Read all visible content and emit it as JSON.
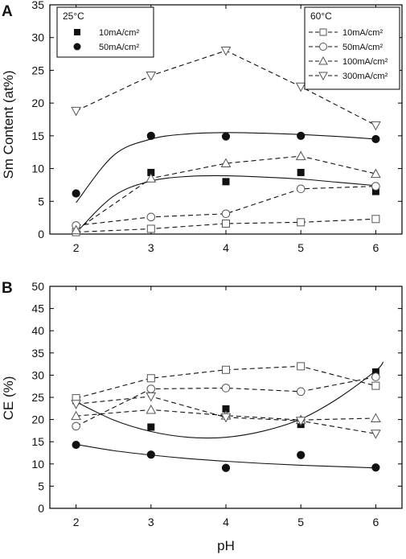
{
  "chart_data": [
    {
      "panel_letter": "A",
      "type": "scatter",
      "ylabel": "Sm Content (at%)",
      "ylim": [
        0,
        35
      ],
      "yticks": [
        "0",
        "5",
        "10",
        "15",
        "20",
        "25",
        "30",
        "35"
      ],
      "xlim": [
        1.65,
        6.35
      ],
      "xticks": [
        "2",
        "3",
        "4",
        "5",
        "6"
      ],
      "legends": [
        {
          "title": "25°C",
          "entries": [
            {
              "series": 0,
              "label": "10mA/cm²"
            },
            {
              "series": 1,
              "label": "50mA/cm²"
            }
          ]
        },
        {
          "title": "60°C",
          "entries": [
            {
              "series": 2,
              "label": "10mA/cm²"
            },
            {
              "series": 3,
              "label": "50mA/cm²"
            },
            {
              "series": 4,
              "label": "100mA/cm²"
            },
            {
              "series": 5,
              "label": "300mA/cm²"
            }
          ]
        }
      ],
      "series": [
        {
          "marker": "square-filled",
          "line": "solid-fit",
          "x": [
            3,
            4,
            5,
            6
          ],
          "y": [
            9.4,
            8.0,
            9.4,
            6.5
          ],
          "fit_x": [
            2,
            2.5,
            3,
            3.5,
            4,
            4.5,
            5,
            5.5,
            6
          ],
          "fit_y": [
            0.2,
            5.8,
            8.1,
            8.8,
            8.9,
            8.7,
            8.4,
            7.9,
            7.4
          ]
        },
        {
          "marker": "circle-filled",
          "line": "solid-fit",
          "x": [
            2,
            3,
            4,
            5,
            6
          ],
          "y": [
            6.2,
            15.0,
            14.9,
            15.0,
            14.5
          ],
          "fit_x": [
            2,
            2.5,
            3,
            3.5,
            4,
            4.5,
            5,
            5.5,
            6
          ],
          "fit_y": [
            4.8,
            12.0,
            14.5,
            15.3,
            15.5,
            15.4,
            15.2,
            14.9,
            14.5
          ]
        },
        {
          "marker": "square-open",
          "line": "dashed",
          "x": [
            2,
            3,
            4,
            5,
            6
          ],
          "y": [
            0.3,
            0.8,
            1.6,
            1.8,
            2.3
          ]
        },
        {
          "marker": "circle-open",
          "line": "dashed",
          "x": [
            2,
            3,
            4,
            5,
            6
          ],
          "y": [
            1.3,
            2.6,
            3.1,
            6.9,
            7.3
          ]
        },
        {
          "marker": "triangle-up-open",
          "line": "dashed",
          "x": [
            2,
            3,
            4,
            5,
            6
          ],
          "y": [
            0.6,
            8.5,
            10.8,
            11.9,
            9.2
          ]
        },
        {
          "marker": "triangle-down-open",
          "line": "dashed",
          "x": [
            2,
            3,
            4,
            5,
            6
          ],
          "y": [
            18.8,
            24.2,
            28.0,
            22.5,
            16.6
          ]
        }
      ]
    },
    {
      "panel_letter": "B",
      "type": "scatter",
      "xlabel": "pH",
      "ylabel": "CE (%)",
      "ylim": [
        0,
        50
      ],
      "yticks": [
        "0",
        "5",
        "10",
        "15",
        "20",
        "25",
        "30",
        "35",
        "40",
        "45",
        "50"
      ],
      "xlim": [
        1.65,
        6.35
      ],
      "xticks": [
        "2",
        "3",
        "4",
        "5",
        "6"
      ],
      "series": [
        {
          "marker": "square-filled",
          "line": "solid-fit",
          "x": [
            2,
            3,
            4,
            5,
            6
          ],
          "y": [
            24.3,
            18.3,
            22.4,
            18.9,
            30.7
          ],
          "fit_x": [
            2,
            2.5,
            3,
            3.5,
            4,
            4.5,
            5,
            5.5,
            6,
            6.1
          ],
          "fit_y": [
            24.0,
            19.9,
            17.3,
            16.0,
            16.0,
            17.4,
            20.1,
            24.8,
            31.0,
            33.0
          ]
        },
        {
          "marker": "circle-filled",
          "line": "solid-fit",
          "x": [
            2,
            3,
            4,
            5,
            6
          ],
          "y": [
            14.3,
            12.1,
            9.1,
            12.0,
            9.2
          ],
          "fit_x": [
            2,
            2.5,
            3,
            3.5,
            4,
            4.5,
            5,
            5.5,
            6
          ],
          "fit_y": [
            14.4,
            13.0,
            12.0,
            11.2,
            10.6,
            10.1,
            9.7,
            9.4,
            9.1
          ]
        },
        {
          "marker": "square-open",
          "line": "dashed",
          "x": [
            2,
            3,
            4,
            5,
            6
          ],
          "y": [
            24.8,
            29.3,
            31.2,
            32.0,
            27.6
          ]
        },
        {
          "marker": "circle-open",
          "line": "dashed",
          "x": [
            2,
            3,
            4,
            5,
            6
          ],
          "y": [
            18.5,
            26.9,
            27.1,
            26.3,
            29.6
          ]
        },
        {
          "marker": "triangle-up-open",
          "line": "dashed",
          "x": [
            2,
            3,
            4,
            5,
            6
          ],
          "y": [
            20.8,
            22.2,
            20.9,
            19.9,
            20.3
          ]
        },
        {
          "marker": "triangle-down-open",
          "line": "dashed",
          "x": [
            2,
            3,
            4,
            5,
            6
          ],
          "y": [
            23.5,
            25.2,
            20.5,
            19.7,
            16.8
          ]
        }
      ]
    }
  ]
}
